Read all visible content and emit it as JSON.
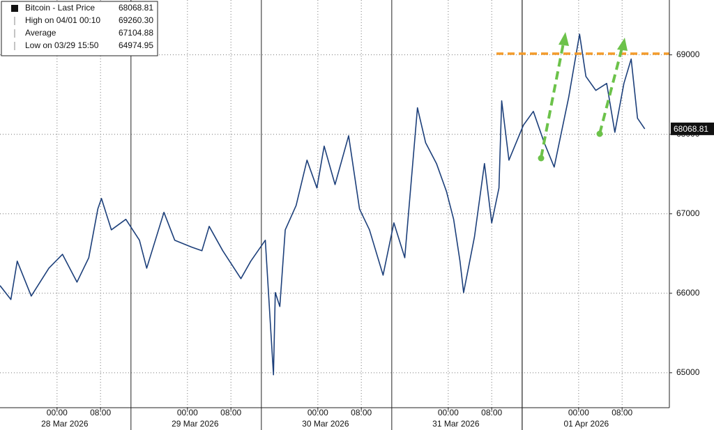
{
  "chart_data": {
    "type": "line",
    "series": [
      {
        "name": "Bitcoin - Last Price",
        "color": "#1c3f7a",
        "values": [
          66096,
          65921,
          66404,
          65965,
          66316,
          66490,
          66140,
          66447,
          67061,
          67193,
          66798,
          66930,
          66667,
          66316,
          67018,
          66667,
          66579,
          66535,
          66842,
          66535,
          66184,
          66404,
          66667,
          64974.95,
          66009,
          65833,
          66798,
          67105,
          67675,
          67325,
          67851,
          67368,
          67982,
          67061,
          66798,
          66228,
          66886,
          66447,
          68333,
          67895,
          67632,
          67281,
          66930,
          66404,
          66009,
          66711,
          67632,
          66886,
          67325,
          68421,
          67675,
          68114,
          68289,
          67895,
          67588,
          68465,
          69260.3,
          68728,
          68553,
          68640,
          68026,
          68640,
          68947,
          68202,
          68068.81
        ]
      }
    ],
    "x": [
      "2026-03-27T13:30",
      "2026-03-27T15:30",
      "2026-03-27T16:40",
      "2026-03-27T19:15",
      "2026-03-27T22:30",
      "2026-03-28T01:00",
      "2026-03-28T03:40",
      "2026-03-28T05:50",
      "2026-03-28T07:30",
      "2026-03-28T08:10",
      "2026-03-28T10:00",
      "2026-03-28T12:40",
      "2026-03-28T15:10",
      "2026-03-28T16:30",
      "2026-03-28T19:40",
      "2026-03-28T21:40",
      "2026-03-29T00:50",
      "2026-03-29T02:40",
      "2026-03-29T04:00",
      "2026-03-29T06:30",
      "2026-03-29T09:50",
      "2026-03-29T11:40",
      "2026-03-29T14:20",
      "2026-03-29T15:50",
      "2026-03-29T16:10",
      "2026-03-29T17:00",
      "2026-03-29T18:00",
      "2026-03-29T20:00",
      "2026-03-29T22:00",
      "2026-03-29T23:50",
      "2026-03-30T01:10",
      "2026-03-30T03:10",
      "2026-03-30T05:40",
      "2026-03-30T07:40",
      "2026-03-30T09:30",
      "2026-03-30T12:00",
      "2026-03-30T14:00",
      "2026-03-30T16:00",
      "2026-03-30T18:20",
      "2026-03-30T19:50",
      "2026-03-30T21:50",
      "2026-03-30T23:40",
      "2026-03-31T01:00",
      "2026-03-31T02:10",
      "2026-03-31T02:50",
      "2026-03-31T04:50",
      "2026-03-31T06:40",
      "2026-03-31T08:00",
      "2026-03-31T09:20",
      "2026-03-31T09:50",
      "2026-03-31T11:10",
      "2026-03-31T13:50",
      "2026-03-31T15:40",
      "2026-03-31T17:40",
      "2026-03-31T19:30",
      "2026-03-31T22:10",
      "2026-04-01T00:10",
      "2026-04-01T01:20",
      "2026-04-01T03:10",
      "2026-04-01T05:10",
      "2026-04-01T06:40",
      "2026-04-01T08:20",
      "2026-04-01T09:40",
      "2026-04-01T10:50",
      "2026-04-01T12:10"
    ],
    "xlim": [
      "2026-03-27T13:30",
      "2026-04-01T16:42"
    ],
    "xticks": [
      {
        "value": "2026-03-28T00:00",
        "label": "00:00"
      },
      {
        "value": "2026-03-28T08:00",
        "label": "08:00"
      },
      {
        "value": "2026-03-29T00:00",
        "label": "00:00"
      },
      {
        "value": "2026-03-29T08:00",
        "label": "08:00"
      },
      {
        "value": "2026-03-30T00:00",
        "label": "00:00"
      },
      {
        "value": "2026-03-30T08:00",
        "label": "08:00"
      },
      {
        "value": "2026-03-31T00:00",
        "label": "00:00"
      },
      {
        "value": "2026-03-31T08:00",
        "label": "08:00"
      },
      {
        "value": "2026-04-01T00:00",
        "label": "00:00"
      },
      {
        "value": "2026-04-01T08:00",
        "label": "08:00"
      }
    ],
    "date_labels": [
      {
        "value": "2026-03-28",
        "label": "28 Mar 2026"
      },
      {
        "value": "2026-03-29",
        "label": "29 Mar 2026"
      },
      {
        "value": "2026-03-30",
        "label": "30 Mar 2026"
      },
      {
        "value": "2026-03-31",
        "label": "31 Mar 2026"
      },
      {
        "value": "2026-04-01",
        "label": "01 Apr 2026"
      }
    ],
    "ylim": [
      64560,
      69690
    ],
    "yticks": [
      65000,
      66000,
      67000,
      68000,
      69000
    ],
    "grid": true,
    "legend_stats": [
      {
        "label": "Bitcoin - Last Price",
        "value": 68068.81
      },
      {
        "label": "High on 04/01 00:10",
        "value": 69260.3,
        "value_label": "69260.30"
      },
      {
        "label": "Average",
        "value": 67104.88
      },
      {
        "label": "Low on 03/29 15:50",
        "value": 64974.95
      }
    ]
  }
}
